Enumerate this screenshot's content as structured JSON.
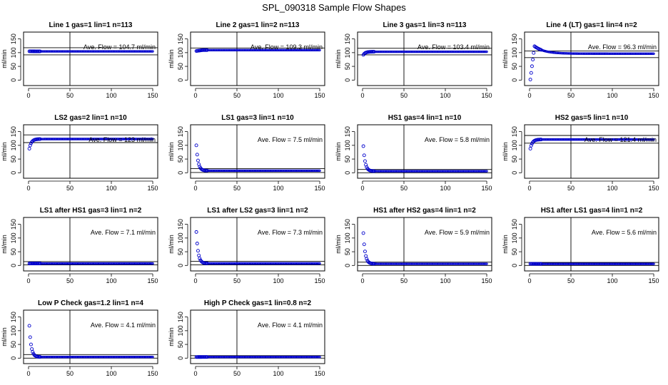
{
  "figure_title": "SPL_090318  Sample Flow Shapes",
  "chart_data": [
    {
      "type": "scatter",
      "title": "Line 1 gas=1 lin=1 n=113",
      "ylabel": "ml/min",
      "annotation": "Ave. Flow =  104.7  ml/min",
      "shape": "flat",
      "start": 105,
      "level": 104.7,
      "xlim": [
        0,
        150
      ],
      "ylim": [
        0,
        150
      ],
      "x_ticks": [
        0,
        50,
        100,
        150
      ],
      "y_ticks": [
        0,
        50,
        100,
        150
      ],
      "vline_x": 50,
      "hlines": [
        92,
        118
      ]
    },
    {
      "type": "scatter",
      "title": "Line 2 gas=1 lin=2 n=113",
      "ylabel": "ml/min",
      "annotation": "Ave. Flow =  109.3  ml/min",
      "shape": "flat",
      "start": 106,
      "level": 109.3,
      "xlim": [
        0,
        150
      ],
      "ylim": [
        0,
        150
      ],
      "x_ticks": [
        0,
        50,
        100,
        150
      ],
      "y_ticks": [
        0,
        50,
        100,
        150
      ],
      "vline_x": 50,
      "hlines": [
        117
      ]
    },
    {
      "type": "scatter",
      "title": "Line 3 gas=1 lin=3 n=113",
      "ylabel": "ml/min",
      "annotation": "Ave. Flow =  103.4  ml/min",
      "shape": "rise",
      "start": 92,
      "level": 103.4,
      "xlim": [
        0,
        150
      ],
      "ylim": [
        0,
        150
      ],
      "x_ticks": [
        0,
        50,
        100,
        150
      ],
      "y_ticks": [
        0,
        50,
        100,
        150
      ],
      "vline_x": 50,
      "hlines": [
        92,
        116
      ]
    },
    {
      "type": "scatter",
      "title": "Line 4 (LT) gas=1 lin=4 n=2",
      "ylabel": "ml/min",
      "annotation": "Ave. Flow =  96.3  ml/min",
      "shape": "overshoot",
      "start": 2,
      "level": 96.3,
      "xlim": [
        0,
        150
      ],
      "ylim": [
        0,
        150
      ],
      "x_ticks": [
        0,
        50,
        100,
        150
      ],
      "y_ticks": [
        0,
        50,
        100,
        150
      ],
      "vline_x": 50,
      "hlines": [
        82,
        106
      ]
    },
    {
      "type": "scatter",
      "title": "LS2 gas=2 lin=1 n=10",
      "ylabel": "ml/min",
      "annotation": "Ave. Flow =  123  ml/min",
      "shape": "rise",
      "start": 88,
      "level": 123,
      "xlim": [
        0,
        150
      ],
      "ylim": [
        0,
        150
      ],
      "x_ticks": [
        0,
        50,
        100,
        150
      ],
      "y_ticks": [
        0,
        50,
        100,
        150
      ],
      "vline_x": 50,
      "hlines": [
        110,
        138
      ]
    },
    {
      "type": "scatter",
      "title": "LS1 gas=3 lin=1 n=10",
      "ylabel": "ml/min",
      "annotation": "Ave. Flow =  7.5  ml/min",
      "shape": "decay",
      "start": 100,
      "level": 7.5,
      "xlim": [
        0,
        150
      ],
      "ylim": [
        0,
        150
      ],
      "x_ticks": [
        0,
        50,
        100,
        150
      ],
      "y_ticks": [
        0,
        50,
        100,
        150
      ],
      "vline_x": 50,
      "hlines": [
        1,
        15
      ]
    },
    {
      "type": "scatter",
      "title": "HS1 gas=4 lin=1 n=10",
      "ylabel": "ml/min",
      "annotation": "Ave. Flow =  5.8  ml/min",
      "shape": "decay",
      "start": 97,
      "level": 5.8,
      "xlim": [
        0,
        150
      ],
      "ylim": [
        0,
        150
      ],
      "x_ticks": [
        0,
        50,
        100,
        150
      ],
      "y_ticks": [
        0,
        50,
        100,
        150
      ],
      "vline_x": 50,
      "hlines": [
        0,
        12
      ]
    },
    {
      "type": "scatter",
      "title": "HS2 gas=5 lin=1 n=10",
      "ylabel": "ml/min",
      "annotation": "Ave. Flow =  121.4  ml/min",
      "shape": "rise",
      "start": 88,
      "level": 121.4,
      "xlim": [
        0,
        150
      ],
      "ylim": [
        0,
        150
      ],
      "x_ticks": [
        0,
        50,
        100,
        150
      ],
      "y_ticks": [
        0,
        50,
        100,
        150
      ],
      "vline_x": 50,
      "hlines": [
        108,
        136
      ]
    },
    {
      "type": "scatter",
      "title": "LS1 after HS1 gas=3 lin=1 n=2",
      "ylabel": "ml/min",
      "annotation": "Ave. Flow =  7.1  ml/min",
      "shape": "flat",
      "start": 7,
      "level": 7.1,
      "xlim": [
        0,
        150
      ],
      "ylim": [
        0,
        150
      ],
      "x_ticks": [
        0,
        50,
        100,
        150
      ],
      "y_ticks": [
        0,
        50,
        100,
        150
      ],
      "vline_x": 50,
      "hlines": [
        2,
        14
      ]
    },
    {
      "type": "scatter",
      "title": "LS1 after LS2 gas=3 lin=1 n=2",
      "ylabel": "ml/min",
      "annotation": "Ave. Flow =  7.3  ml/min",
      "shape": "decay",
      "start": 122,
      "level": 7.3,
      "xlim": [
        0,
        150
      ],
      "ylim": [
        0,
        150
      ],
      "x_ticks": [
        0,
        50,
        100,
        150
      ],
      "y_ticks": [
        0,
        50,
        100,
        150
      ],
      "vline_x": 50,
      "hlines": [
        2,
        15
      ]
    },
    {
      "type": "scatter",
      "title": "HS1 after HS2 gas=4 lin=1 n=2",
      "ylabel": "ml/min",
      "annotation": "Ave. Flow =  5.9  ml/min",
      "shape": "decay",
      "start": 118,
      "level": 5.9,
      "xlim": [
        0,
        150
      ],
      "ylim": [
        0,
        150
      ],
      "x_ticks": [
        0,
        50,
        100,
        150
      ],
      "y_ticks": [
        0,
        50,
        100,
        150
      ],
      "vline_x": 50,
      "hlines": [
        0,
        12
      ]
    },
    {
      "type": "scatter",
      "title": "HS1 after LS1 gas=4 lin=1 n=2",
      "ylabel": "ml/min",
      "annotation": "Ave. Flow =  5.6  ml/min",
      "shape": "flat",
      "start": 6,
      "level": 5.6,
      "xlim": [
        0,
        150
      ],
      "ylim": [
        0,
        150
      ],
      "x_ticks": [
        0,
        50,
        100,
        150
      ],
      "y_ticks": [
        0,
        50,
        100,
        150
      ],
      "vline_x": 50,
      "hlines": [
        0,
        11
      ]
    },
    {
      "type": "scatter",
      "title": "Low P Check gas=1.2 lin=1 n=4",
      "ylabel": "ml/min",
      "annotation": "Ave. Flow =  4.1  ml/min",
      "shape": "decay",
      "start": 118,
      "level": 4.1,
      "xlim": [
        0,
        150
      ],
      "ylim": [
        0,
        150
      ],
      "x_ticks": [
        0,
        50,
        100,
        150
      ],
      "y_ticks": [
        0,
        50,
        100,
        150
      ],
      "vline_x": 50,
      "hlines": [
        0,
        13
      ]
    },
    {
      "type": "scatter",
      "title": "High P Check gas=1 lin=0.8 n=2",
      "ylabel": "ml/min",
      "annotation": "Ave. Flow =  4.1  ml/min",
      "shape": "flat",
      "start": 4,
      "level": 4.1,
      "xlim": [
        0,
        150
      ],
      "ylim": [
        0,
        150
      ],
      "x_ticks": [
        0,
        50,
        100,
        150
      ],
      "y_ticks": [
        0,
        50,
        100,
        150
      ],
      "vline_x": 50,
      "hlines": [
        0,
        9
      ]
    }
  ],
  "colors": {
    "points": "#0000cc",
    "axes": "#000000",
    "background": "#ffffff"
  }
}
